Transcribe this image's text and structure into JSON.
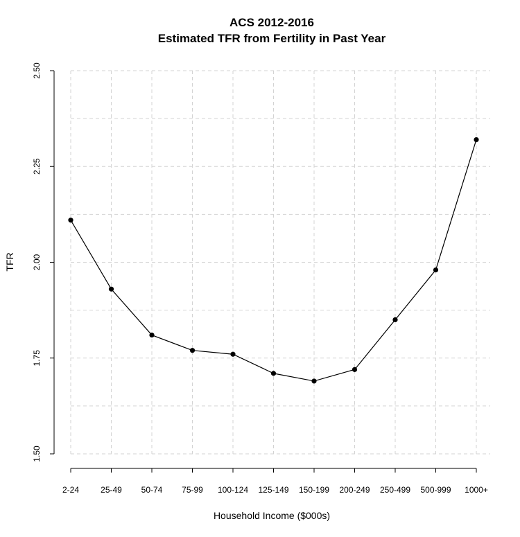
{
  "chart_data": {
    "type": "line",
    "title": "ACS 2012-2016",
    "subtitle": "Estimated TFR from Fertility in Past Year",
    "xlabel": "Household Income ($000s)",
    "ylabel": "TFR",
    "categories": [
      "2-24",
      "25-49",
      "50-74",
      "75-99",
      "100-124",
      "125-149",
      "150-199",
      "200-249",
      "250-499",
      "500-999",
      "1000+"
    ],
    "values": [
      2.11,
      1.93,
      1.81,
      1.77,
      1.76,
      1.71,
      1.69,
      1.72,
      1.85,
      1.98,
      2.32
    ],
    "ylim": [
      1.5,
      2.5
    ],
    "yticks": [
      "1.50",
      "1.75",
      "2.00",
      "2.25",
      "2.50"
    ],
    "grid": true,
    "colors": {
      "line": "#000000",
      "point": "#000000",
      "grid": "#d3d3d3"
    }
  }
}
